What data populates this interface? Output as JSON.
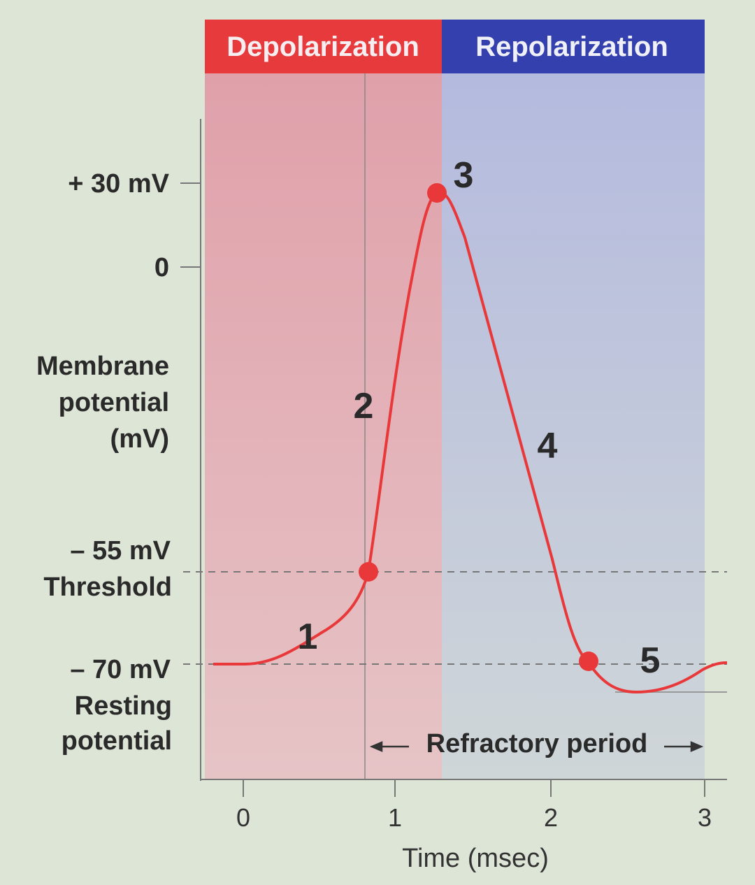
{
  "header": {
    "left": "Depolarization",
    "right": "Repolarization"
  },
  "y_axis": {
    "title": [
      "Membrane",
      "potential",
      "(mV)"
    ],
    "top_labels": [
      "+ 30 mV",
      "0"
    ],
    "threshold": {
      "value": "– 55 mV",
      "label": "Threshold"
    },
    "resting": {
      "value": "– 70 mV",
      "label": [
        "Resting",
        "potential"
      ]
    }
  },
  "x_axis": {
    "ticks": [
      "0",
      "1",
      "2",
      "3"
    ],
    "title": "Time (msec)"
  },
  "phases": [
    "1",
    "2",
    "3",
    "4",
    "5"
  ],
  "refractory_period": "Refractory period"
}
